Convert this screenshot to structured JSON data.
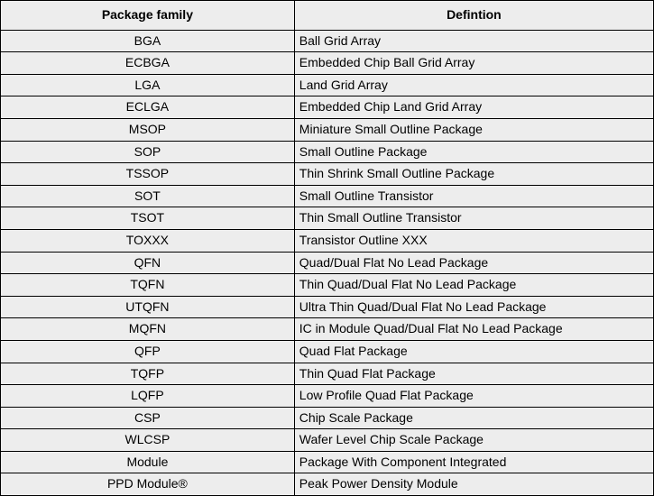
{
  "table": {
    "columns": [
      "Package family",
      "Defintion"
    ],
    "col_widths_pct": [
      45,
      55
    ],
    "col_align": [
      "center",
      "left"
    ],
    "header_fontweight": "bold",
    "header_fontsize": 14,
    "cell_fontsize": 14,
    "border_color": "#000000",
    "row_background": "#ededed",
    "header_background": "#ededed",
    "text_color": "#000000",
    "rows": [
      [
        "BGA",
        "Ball Grid Array"
      ],
      [
        "ECBGA",
        "Embedded Chip Ball Grid Array"
      ],
      [
        "LGA",
        "Land Grid Array"
      ],
      [
        "ECLGA",
        "Embedded Chip Land Grid Array"
      ],
      [
        "MSOP",
        "Miniature Small Outline Package"
      ],
      [
        "SOP",
        "Small Outline Package"
      ],
      [
        "TSSOP",
        "Thin Shrink Small Outline Package"
      ],
      [
        "SOT",
        "Small Outline Transistor"
      ],
      [
        "TSOT",
        "Thin Small Outline Transistor"
      ],
      [
        "TOXXX",
        "Transistor Outline XXX"
      ],
      [
        "QFN",
        "Quad/Dual Flat No Lead Package"
      ],
      [
        "TQFN",
        "Thin Quad/Dual Flat No Lead Package"
      ],
      [
        "UTQFN",
        "Ultra Thin Quad/Dual Flat No Lead Package"
      ],
      [
        "MQFN",
        "IC in Module Quad/Dual Flat No Lead Package"
      ],
      [
        "QFP",
        "Quad Flat Package"
      ],
      [
        "TQFP",
        "Thin Quad Flat Package"
      ],
      [
        "LQFP",
        "Low Profile Quad Flat Package"
      ],
      [
        "CSP",
        "Chip Scale Package"
      ],
      [
        "WLCSP",
        "Wafer Level Chip Scale Package"
      ],
      [
        "Module",
        "Package With Component Integrated"
      ],
      [
        "PPD Module®",
        "Peak Power Density Module"
      ]
    ]
  }
}
